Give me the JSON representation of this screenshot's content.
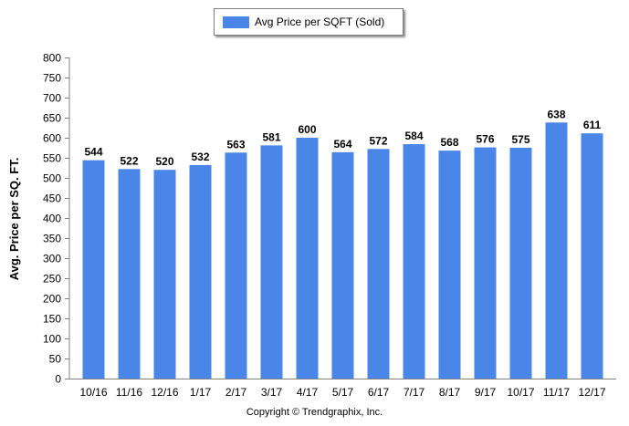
{
  "chart_data": {
    "type": "bar",
    "categories": [
      "10/16",
      "11/16",
      "12/16",
      "1/17",
      "2/17",
      "3/17",
      "4/17",
      "5/17",
      "6/17",
      "7/17",
      "8/17",
      "9/17",
      "10/17",
      "11/17",
      "12/17"
    ],
    "series": [
      {
        "name": "Avg Price per SQFT (Sold)",
        "values": [
          544,
          522,
          520,
          532,
          563,
          581,
          600,
          564,
          572,
          584,
          568,
          576,
          575,
          638,
          611
        ],
        "color": "#4a86e8"
      }
    ],
    "ylabel": "Avg. Price per SQ. FT.",
    "xlabel": "",
    "ylim": [
      0,
      800
    ],
    "yticks": [
      0,
      50,
      100,
      150,
      200,
      250,
      300,
      350,
      400,
      450,
      500,
      550,
      600,
      650,
      700,
      750,
      800
    ],
    "grid": false,
    "legend": "top-center",
    "data_labels": true
  },
  "footer": {
    "copyright": "Copyright © Trendgraphix, Inc."
  }
}
